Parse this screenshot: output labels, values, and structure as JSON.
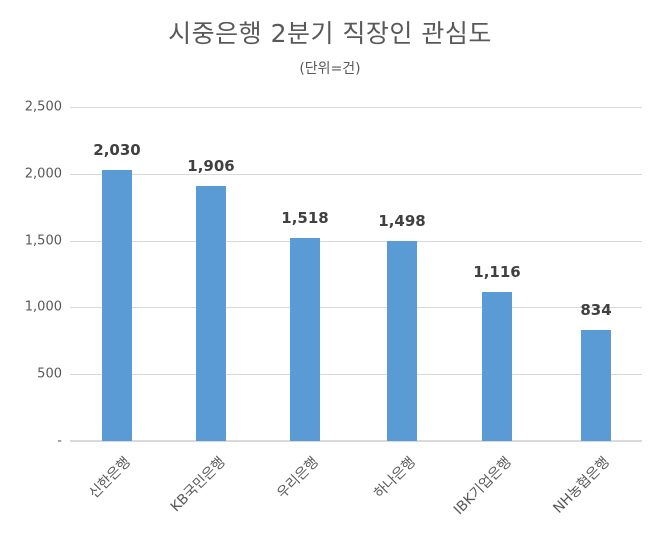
{
  "chart_data": {
    "type": "bar",
    "title": "시중은행 2분기 직장인 관심도",
    "subtitle": "(단위=건)",
    "xlabel": "",
    "ylabel": "",
    "categories": [
      "신한은행",
      "KB국민은행",
      "우리은행",
      "하나은행",
      "IBK기업은행",
      "NH농협은행"
    ],
    "values": [
      2030,
      1906,
      1518,
      1498,
      1116,
      834
    ],
    "value_labels": [
      "2,030",
      "1,906",
      "1,518",
      "1,498",
      "1,116",
      "834"
    ],
    "ylim": [
      0,
      2500
    ],
    "yticks": [
      0,
      500,
      1000,
      1500,
      2000,
      2500
    ],
    "ytick_labels": [
      "-",
      "500",
      "1,000",
      "1,500",
      "2,000",
      "2,500"
    ],
    "grid": true,
    "legend": "none",
    "bar_color": "#5b9bd5"
  }
}
